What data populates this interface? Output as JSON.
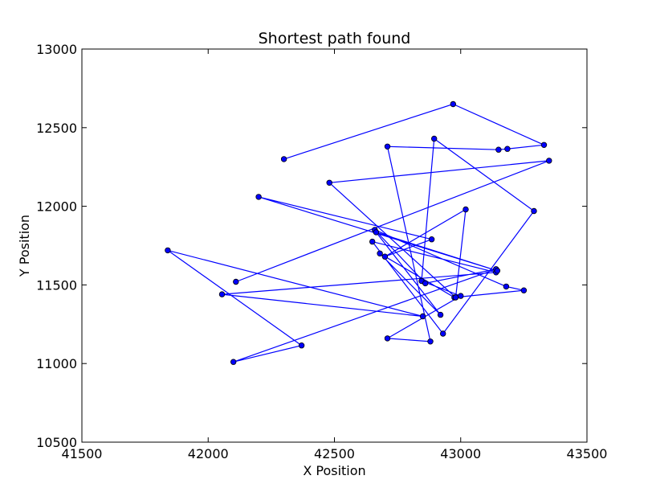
{
  "chart_data": {
    "type": "line",
    "title": "Shortest path found",
    "xlabel": "X Position",
    "ylabel": "Y Position",
    "xlim": [
      41500,
      43500
    ],
    "ylim": [
      10500,
      13000
    ],
    "xticks": [
      41500,
      42000,
      42500,
      43000,
      43500
    ],
    "yticks": [
      10500,
      11000,
      11500,
      12000,
      12500,
      13000
    ],
    "grid": false,
    "legend": "none",
    "color": "#0000ff",
    "marker": "circle",
    "path": [
      {
        "x": 42300,
        "y": 12300
      },
      {
        "x": 42970,
        "y": 12650
      },
      {
        "x": 43330,
        "y": 12390
      },
      {
        "x": 43185,
        "y": 12365
      },
      {
        "x": 43150,
        "y": 12360
      },
      {
        "x": 42710,
        "y": 12380
      },
      {
        "x": 42880,
        "y": 11140
      },
      {
        "x": 42710,
        "y": 11160
      },
      {
        "x": 43000,
        "y": 11430
      },
      {
        "x": 42845,
        "y": 11525
      },
      {
        "x": 42895,
        "y": 12430
      },
      {
        "x": 43290,
        "y": 11970
      },
      {
        "x": 42930,
        "y": 11190
      },
      {
        "x": 42650,
        "y": 11775
      },
      {
        "x": 43140,
        "y": 11580
      },
      {
        "x": 42055,
        "y": 11440
      },
      {
        "x": 42850,
        "y": 11300
      },
      {
        "x": 41840,
        "y": 11720
      },
      {
        "x": 42370,
        "y": 11115
      },
      {
        "x": 42100,
        "y": 11010
      },
      {
        "x": 43140,
        "y": 11600
      },
      {
        "x": 42860,
        "y": 11510
      },
      {
        "x": 42660,
        "y": 11850
      },
      {
        "x": 43180,
        "y": 11490
      },
      {
        "x": 43250,
        "y": 11465
      },
      {
        "x": 42975,
        "y": 11420
      },
      {
        "x": 42680,
        "y": 11700
      },
      {
        "x": 42920,
        "y": 11310
      },
      {
        "x": 42665,
        "y": 11835
      },
      {
        "x": 43145,
        "y": 11590
      },
      {
        "x": 42200,
        "y": 12060
      },
      {
        "x": 42885,
        "y": 11790
      },
      {
        "x": 42700,
        "y": 11680
      },
      {
        "x": 43020,
        "y": 11980
      },
      {
        "x": 42980,
        "y": 11420
      },
      {
        "x": 42480,
        "y": 12150
      },
      {
        "x": 43350,
        "y": 12290
      },
      {
        "x": 42110,
        "y": 11520
      }
    ]
  }
}
